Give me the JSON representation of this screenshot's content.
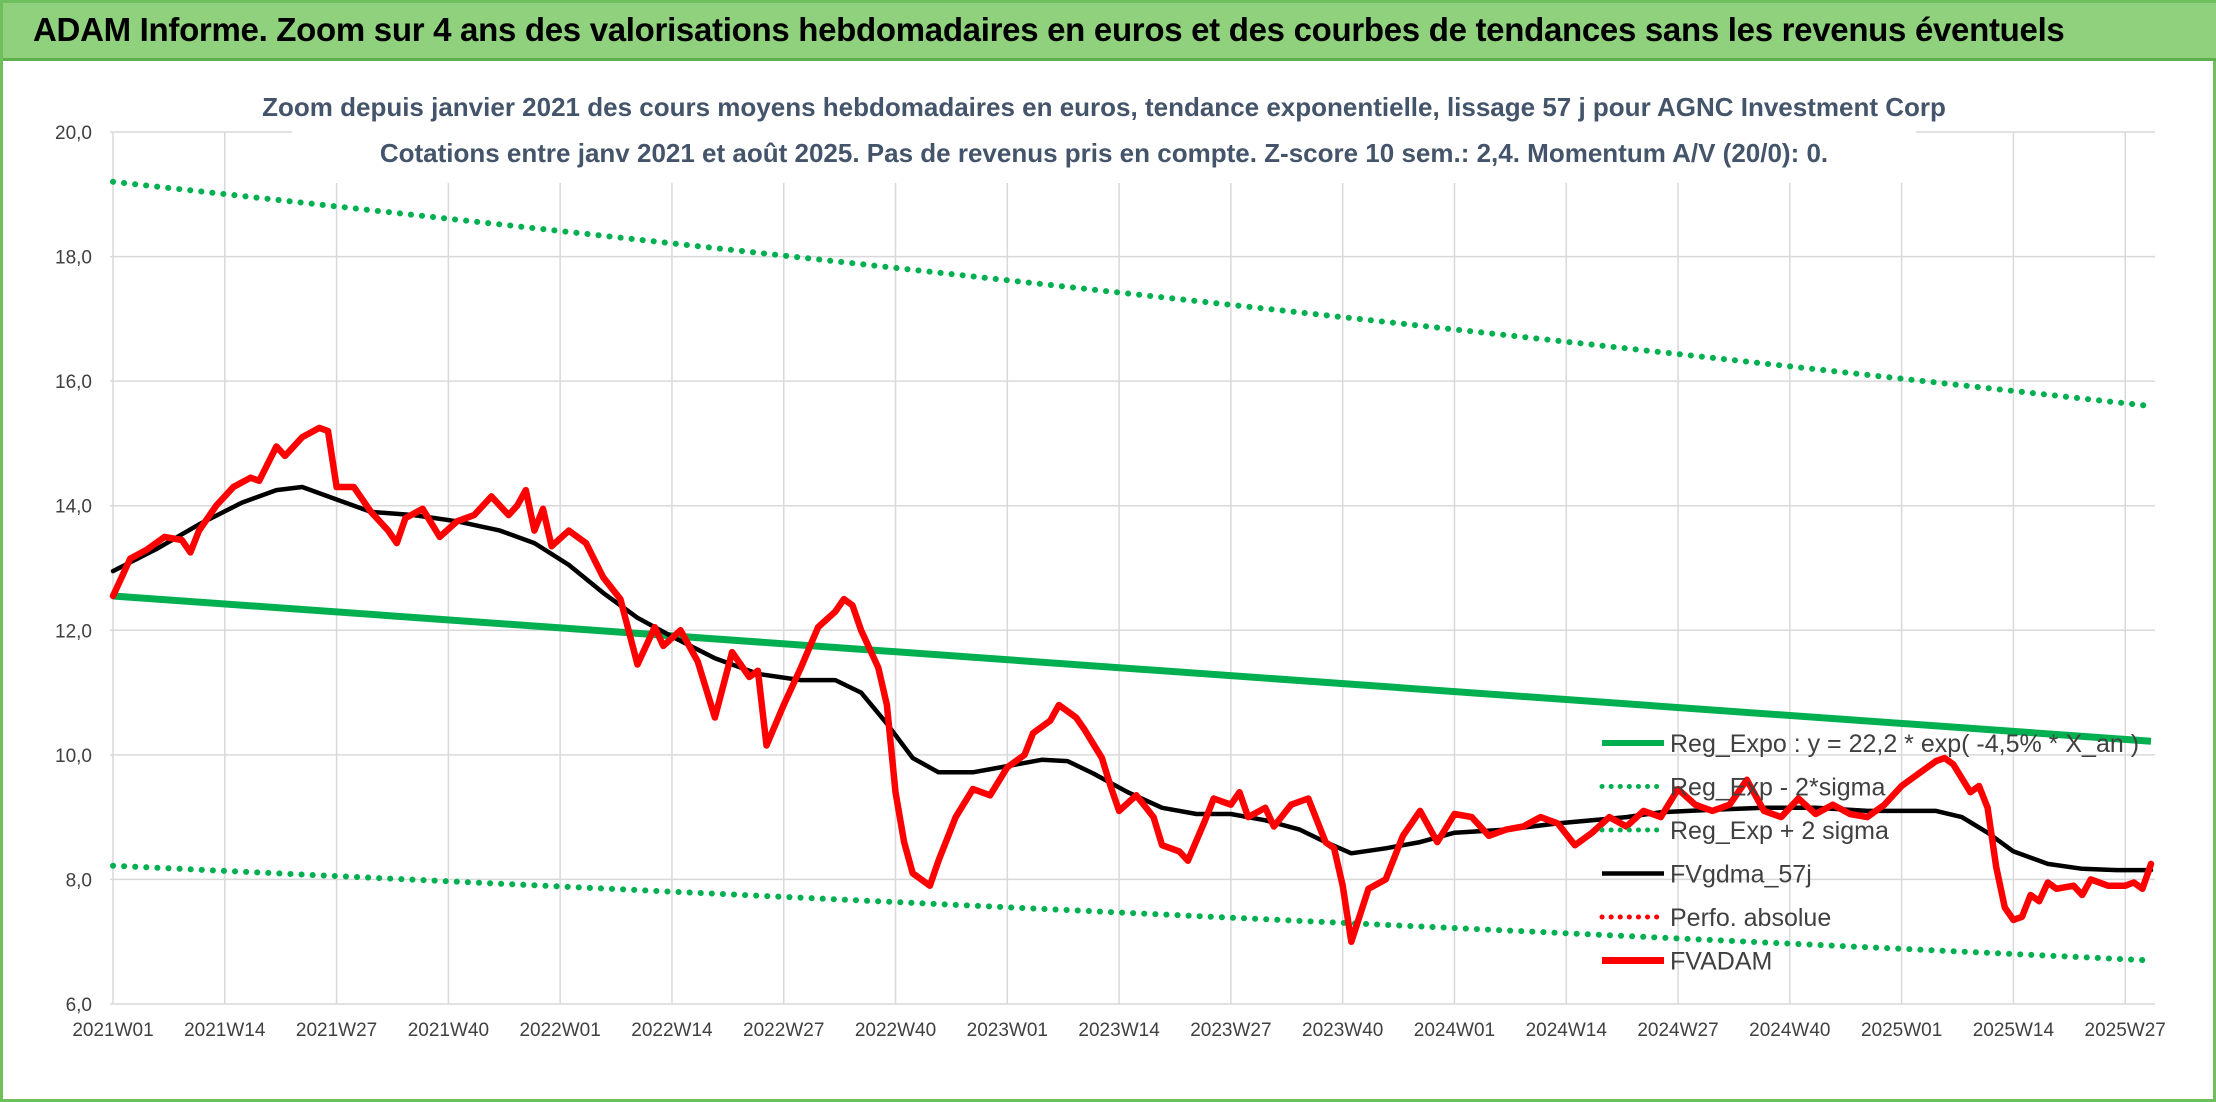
{
  "banner_title": "ADAM Informe. Zoom sur 4 ans des valorisations hebdomadaires en euros et des courbes de tendances sans les revenus éventuels",
  "colors": {
    "banner_bg": "#8fd17c",
    "green": "#00b050",
    "red": "#ff0000",
    "black": "#000000",
    "grid": "#d9d9d9",
    "title_text": "#44546a"
  },
  "chart_data": {
    "type": "line",
    "title": "Zoom depuis janvier 2021 des cours moyens hebdomadaires en euros, tendance exponentielle, lissage 57 j pour AGNC Investment Corp",
    "subtitle": "Cotations entre janv 2021 et août 2025. Pas de revenus pris en compte. Z-score 10 sem.: 2,4. Momentum A/V (20/0): 0.",
    "ylim": [
      6,
      20
    ],
    "y_ticks": [
      "20,0",
      "18,0",
      "16,0",
      "14,0",
      "12,0",
      "10,0",
      "8,0",
      "6,0"
    ],
    "x_range_weeks": [
      0,
      237
    ],
    "x_ticks": [
      {
        "week": 0,
        "label": "2021W01"
      },
      {
        "week": 13,
        "label": "2021W14"
      },
      {
        "week": 26,
        "label": "2021W27"
      },
      {
        "week": 39,
        "label": "2021W40"
      },
      {
        "week": 52,
        "label": "2022W01"
      },
      {
        "week": 65,
        "label": "2022W14"
      },
      {
        "week": 78,
        "label": "2022W27"
      },
      {
        "week": 91,
        "label": "2022W40"
      },
      {
        "week": 104,
        "label": "2023W01"
      },
      {
        "week": 117,
        "label": "2023W14"
      },
      {
        "week": 130,
        "label": "2023W27"
      },
      {
        "week": 143,
        "label": "2023W40"
      },
      {
        "week": 156,
        "label": "2024W01"
      },
      {
        "week": 169,
        "label": "2024W14"
      },
      {
        "week": 182,
        "label": "2024W27"
      },
      {
        "week": 195,
        "label": "2024W40"
      },
      {
        "week": 208,
        "label": "2025W01"
      },
      {
        "week": 221,
        "label": "2025W14"
      },
      {
        "week": 234,
        "label": "2025W27"
      }
    ],
    "grid": true,
    "legend_position": "bottom-right",
    "series": [
      {
        "name": "Reg_Expo : y = 22,2 * exp( -4,5% * X_an )",
        "key": "reg_expo",
        "style": "solid",
        "color": "#00b050",
        "points": [
          [
            0,
            12.55
          ],
          [
            237,
            10.22
          ]
        ]
      },
      {
        "name": "Reg_Exp - 2*sigma",
        "key": "reg_minus",
        "style": "dotted",
        "color": "#00b050",
        "points": [
          [
            0,
            8.22
          ],
          [
            237,
            6.7
          ]
        ]
      },
      {
        "name": "Reg_Exp + 2 sigma",
        "key": "reg_plus",
        "style": "dotted",
        "color": "#00b050",
        "points": [
          [
            0,
            19.2
          ],
          [
            237,
            15.6
          ]
        ]
      },
      {
        "name": "FVgdma_57j",
        "key": "mma",
        "style": "solid",
        "color": "#000000",
        "points": [
          [
            0,
            12.95
          ],
          [
            5,
            13.3
          ],
          [
            10,
            13.7
          ],
          [
            15,
            14.05
          ],
          [
            19,
            14.25
          ],
          [
            22,
            14.3
          ],
          [
            26,
            14.1
          ],
          [
            30,
            13.9
          ],
          [
            35,
            13.85
          ],
          [
            40,
            13.75
          ],
          [
            45,
            13.6
          ],
          [
            49,
            13.4
          ],
          [
            53,
            13.05
          ],
          [
            57,
            12.6
          ],
          [
            61,
            12.2
          ],
          [
            65,
            11.9
          ],
          [
            70,
            11.55
          ],
          [
            75,
            11.3
          ],
          [
            80,
            11.2
          ],
          [
            84,
            11.2
          ],
          [
            87,
            11.0
          ],
          [
            90,
            10.5
          ],
          [
            93,
            9.95
          ],
          [
            96,
            9.72
          ],
          [
            100,
            9.72
          ],
          [
            104,
            9.82
          ],
          [
            108,
            9.92
          ],
          [
            111,
            9.9
          ],
          [
            114,
            9.7
          ],
          [
            118,
            9.4
          ],
          [
            122,
            9.15
          ],
          [
            126,
            9.05
          ],
          [
            130,
            9.05
          ],
          [
            134,
            8.95
          ],
          [
            138,
            8.8
          ],
          [
            141,
            8.6
          ],
          [
            144,
            8.42
          ],
          [
            148,
            8.5
          ],
          [
            152,
            8.6
          ],
          [
            156,
            8.75
          ],
          [
            162,
            8.8
          ],
          [
            168,
            8.9
          ],
          [
            172,
            8.95
          ],
          [
            176,
            9.0
          ],
          [
            180,
            9.08
          ],
          [
            186,
            9.12
          ],
          [
            192,
            9.15
          ],
          [
            198,
            9.15
          ],
          [
            204,
            9.1
          ],
          [
            208,
            9.1
          ],
          [
            212,
            9.1
          ],
          [
            215,
            9.0
          ],
          [
            218,
            8.75
          ],
          [
            221,
            8.45
          ],
          [
            225,
            8.25
          ],
          [
            229,
            8.17
          ],
          [
            233,
            8.15
          ],
          [
            237,
            8.15
          ]
        ]
      },
      {
        "name": "Perfo. absolue",
        "key": "perfo",
        "style": "dotted",
        "color": "#ff0000",
        "points": []
      },
      {
        "name": "FVADAM",
        "key": "fvadam",
        "style": "solid",
        "color": "#ff0000",
        "points": [
          [
            0,
            12.55
          ],
          [
            2,
            13.15
          ],
          [
            4,
            13.3
          ],
          [
            6,
            13.5
          ],
          [
            8,
            13.45
          ],
          [
            9,
            13.25
          ],
          [
            10,
            13.6
          ],
          [
            12,
            14.0
          ],
          [
            14,
            14.3
          ],
          [
            16,
            14.45
          ],
          [
            17,
            14.4
          ],
          [
            19,
            14.95
          ],
          [
            20,
            14.8
          ],
          [
            22,
            15.1
          ],
          [
            24,
            15.25
          ],
          [
            25,
            15.2
          ],
          [
            26,
            14.3
          ],
          [
            28,
            14.3
          ],
          [
            30,
            13.9
          ],
          [
            32,
            13.6
          ],
          [
            33,
            13.4
          ],
          [
            34,
            13.8
          ],
          [
            36,
            13.95
          ],
          [
            38,
            13.5
          ],
          [
            40,
            13.75
          ],
          [
            42,
            13.85
          ],
          [
            44,
            14.15
          ],
          [
            46,
            13.85
          ],
          [
            47,
            14.0
          ],
          [
            48,
            14.25
          ],
          [
            49,
            13.6
          ],
          [
            50,
            13.95
          ],
          [
            51,
            13.35
          ],
          [
            53,
            13.6
          ],
          [
            55,
            13.4
          ],
          [
            57,
            12.85
          ],
          [
            59,
            12.5
          ],
          [
            61,
            11.45
          ],
          [
            63,
            12.05
          ],
          [
            64,
            11.75
          ],
          [
            66,
            12.0
          ],
          [
            68,
            11.5
          ],
          [
            70,
            10.6
          ],
          [
            72,
            11.65
          ],
          [
            74,
            11.25
          ],
          [
            75,
            11.35
          ],
          [
            76,
            10.15
          ],
          [
            78,
            10.8
          ],
          [
            80,
            11.4
          ],
          [
            82,
            12.05
          ],
          [
            84,
            12.3
          ],
          [
            85,
            12.5
          ],
          [
            86,
            12.4
          ],
          [
            87,
            12.0
          ],
          [
            89,
            11.4
          ],
          [
            90,
            10.8
          ],
          [
            91,
            9.4
          ],
          [
            92,
            8.6
          ],
          [
            93,
            8.1
          ],
          [
            95,
            7.9
          ],
          [
            96,
            8.3
          ],
          [
            98,
            9.0
          ],
          [
            100,
            9.45
          ],
          [
            102,
            9.35
          ],
          [
            104,
            9.8
          ],
          [
            106,
            10.0
          ],
          [
            107,
            10.35
          ],
          [
            109,
            10.55
          ],
          [
            110,
            10.8
          ],
          [
            112,
            10.6
          ],
          [
            113,
            10.4
          ],
          [
            115,
            9.95
          ],
          [
            116,
            9.5
          ],
          [
            117,
            9.1
          ],
          [
            119,
            9.35
          ],
          [
            121,
            9.0
          ],
          [
            122,
            8.55
          ],
          [
            124,
            8.45
          ],
          [
            125,
            8.3
          ],
          [
            127,
            8.95
          ],
          [
            128,
            9.3
          ],
          [
            130,
            9.2
          ],
          [
            131,
            9.4
          ],
          [
            132,
            9.0
          ],
          [
            134,
            9.15
          ],
          [
            135,
            8.85
          ],
          [
            137,
            9.2
          ],
          [
            139,
            9.3
          ],
          [
            141,
            8.6
          ],
          [
            142,
            8.5
          ],
          [
            143,
            7.9
          ],
          [
            144,
            7.0
          ],
          [
            146,
            7.85
          ],
          [
            148,
            8.0
          ],
          [
            150,
            8.7
          ],
          [
            152,
            9.1
          ],
          [
            154,
            8.6
          ],
          [
            156,
            9.05
          ],
          [
            158,
            9.0
          ],
          [
            160,
            8.7
          ],
          [
            162,
            8.8
          ],
          [
            164,
            8.85
          ],
          [
            166,
            9.0
          ],
          [
            168,
            8.9
          ],
          [
            170,
            8.55
          ],
          [
            172,
            8.75
          ],
          [
            174,
            9.0
          ],
          [
            176,
            8.85
          ],
          [
            178,
            9.1
          ],
          [
            180,
            9.0
          ],
          [
            182,
            9.45
          ],
          [
            184,
            9.2
          ],
          [
            186,
            9.1
          ],
          [
            188,
            9.2
          ],
          [
            190,
            9.6
          ],
          [
            192,
            9.1
          ],
          [
            194,
            9.0
          ],
          [
            196,
            9.3
          ],
          [
            198,
            9.05
          ],
          [
            200,
            9.2
          ],
          [
            202,
            9.05
          ],
          [
            204,
            9.0
          ],
          [
            206,
            9.2
          ],
          [
            208,
            9.5
          ],
          [
            210,
            9.7
          ],
          [
            212,
            9.9
          ],
          [
            213,
            9.95
          ],
          [
            214,
            9.85
          ],
          [
            216,
            9.4
          ],
          [
            217,
            9.5
          ],
          [
            218,
            9.15
          ],
          [
            219,
            8.2
          ],
          [
            220,
            7.55
          ],
          [
            221,
            7.35
          ],
          [
            222,
            7.4
          ],
          [
            223,
            7.75
          ],
          [
            224,
            7.65
          ],
          [
            225,
            7.95
          ],
          [
            226,
            7.85
          ],
          [
            228,
            7.9
          ],
          [
            229,
            7.75
          ],
          [
            230,
            8.0
          ],
          [
            232,
            7.9
          ],
          [
            234,
            7.9
          ],
          [
            235,
            7.95
          ],
          [
            236,
            7.85
          ],
          [
            237,
            8.25
          ]
        ]
      }
    ]
  }
}
